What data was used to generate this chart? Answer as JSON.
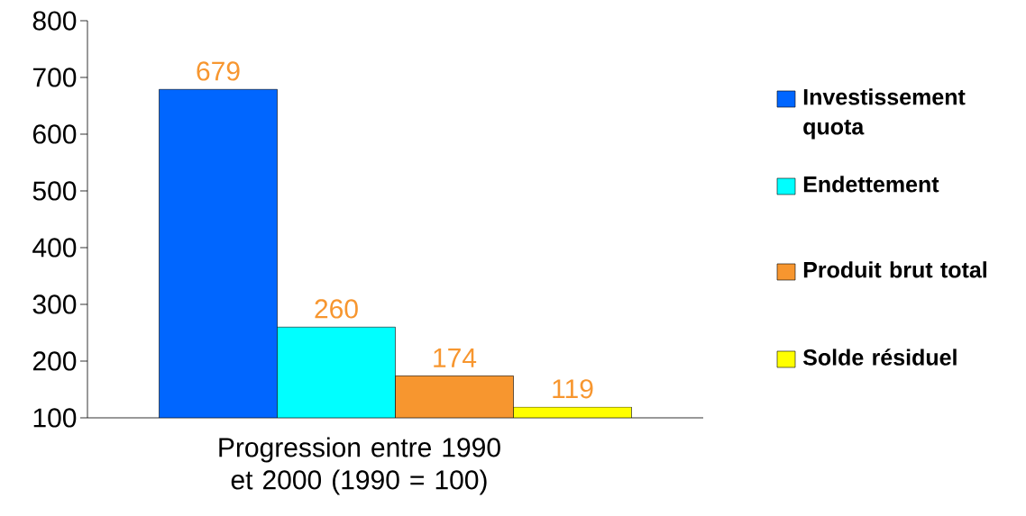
{
  "chart_data": {
    "type": "bar",
    "xlabel": "Progression entre 1990 et 2000 (1990 = 100)",
    "categories": [
      null
    ],
    "series": [
      {
        "name": "Investissement quota",
        "color": "#0066ff",
        "values": [
          679
        ]
      },
      {
        "name": "Endettement",
        "color": "#00ffff",
        "values": [
          260
        ]
      },
      {
        "name": "Produit brut total",
        "color": "#f7962f",
        "values": [
          174
        ]
      },
      {
        "name": "Solde résiduel",
        "color": "#ffff00",
        "values": [
          119
        ]
      }
    ],
    "ylim": [
      100,
      800
    ],
    "yticks": [
      100,
      200,
      300,
      400,
      500,
      600,
      700,
      800
    ],
    "data_labels": true,
    "legend": "right",
    "grid": false
  }
}
